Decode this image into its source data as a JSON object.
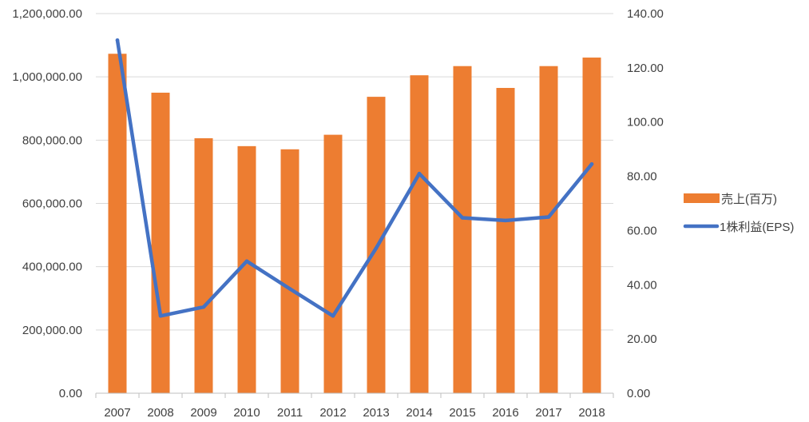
{
  "chart_data": {
    "type": "bar",
    "title": "",
    "xlabel": "",
    "ylabel": "",
    "categories": [
      "2007",
      "2008",
      "2009",
      "2010",
      "2011",
      "2012",
      "2013",
      "2014",
      "2015",
      "2016",
      "2017",
      "2018"
    ],
    "series": [
      {
        "name": "売上(百万)",
        "type": "bar",
        "axis": "left",
        "color": "#ED7D31",
        "values": [
          1073000,
          950000,
          806000,
          781000,
          771000,
          817000,
          937000,
          1005000,
          1034000,
          965000,
          1034000,
          1061000
        ]
      },
      {
        "name": "1株利益(EPS)",
        "type": "line",
        "axis": "right",
        "color": "#4472C4",
        "values": [
          130.2,
          28.5,
          31.8,
          48.7,
          38.5,
          28.5,
          53.5,
          81.0,
          64.7,
          63.7,
          65.0,
          84.5
        ]
      }
    ],
    "y_left": {
      "ylim": [
        0,
        1200000
      ],
      "ticks": [
        "0.00",
        "200,000.00",
        "400,000.00",
        "600,000.00",
        "800,000.00",
        "1,000,000.00",
        "1,200,000.00"
      ]
    },
    "y_right": {
      "ylim": [
        0,
        140
      ],
      "ticks": [
        "0.00",
        "20.00",
        "40.00",
        "60.00",
        "80.00",
        "100.00",
        "120.00",
        "140.00"
      ]
    },
    "grid": true,
    "legend": {
      "position": "right",
      "entries": [
        "売上(百万)",
        "1株利益(EPS)"
      ]
    },
    "colors": {
      "gridline": "#D9D9D9",
      "axis": "#BFBFBF",
      "text": "#404040"
    }
  }
}
